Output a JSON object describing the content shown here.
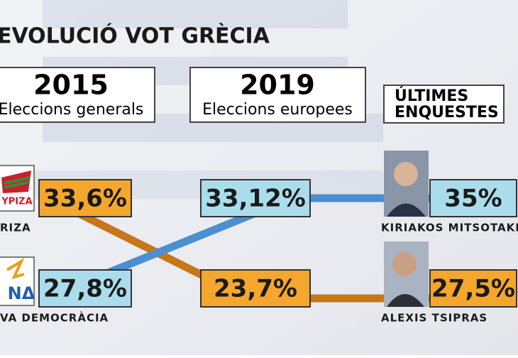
{
  "header": {
    "title": "EVOLUCIÓ VOT  GRÈCIA"
  },
  "columns": [
    {
      "year": "2015",
      "label": "Eleccions generals"
    },
    {
      "year": "2019",
      "label": "Eleccions europees"
    },
    {
      "lines": [
        "ÚLTIMES",
        "ENQUESTES"
      ]
    }
  ],
  "parties": [
    {
      "logo": "ΥΡΙΖΑ",
      "name": "RIZA",
      "results": [
        "33,6%",
        "23,7%",
        "27,5%"
      ],
      "leader": "ALEXIS TSIPRAS"
    },
    {
      "logo": "ΝΔ",
      "name": "VA DEMOCRÀCIA",
      "results": [
        "27,8%",
        "33,12%",
        "35%"
      ],
      "leader": "KIRIAKOS MITSOTAKIS"
    }
  ]
}
